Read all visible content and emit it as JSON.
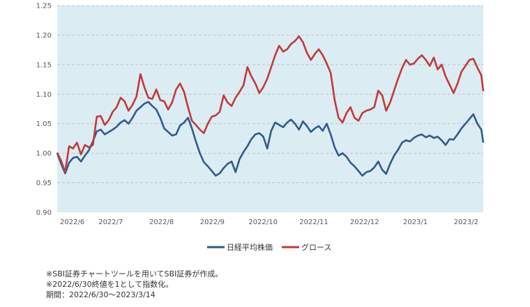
{
  "chart_data": {
    "type": "line",
    "title": "",
    "xlabel": "",
    "ylabel": "",
    "ylim": [
      0.9,
      1.25
    ],
    "yticks": [
      0.9,
      0.95,
      1.0,
      1.05,
      1.1,
      1.15,
      1.2,
      1.25
    ],
    "ytick_labels": [
      "0.90",
      "0.95",
      "1.00",
      "1.05",
      "1.10",
      "1.15",
      "1.20",
      "1.25"
    ],
    "x_categories": [
      "2022/6",
      "2022/7",
      "2022/8",
      "2022/9",
      "2022/10",
      "2022/11",
      "2022/12",
      "2023/1",
      "2023/2"
    ],
    "grid": true,
    "plot_background": "#dcecf3",
    "legend_position": "bottom",
    "series": [
      {
        "name": "日経平均株価",
        "color": "#2e5a8f",
        "values": [
          [
            0,
            1.0
          ],
          [
            0.2,
            0.982
          ],
          [
            0.4,
            0.966
          ],
          [
            0.6,
            0.984
          ],
          [
            0.8,
            0.992
          ],
          [
            1.0,
            0.994
          ],
          [
            1.2,
            0.986
          ],
          [
            1.4,
            0.996
          ],
          [
            1.6,
            1.005
          ],
          [
            1.8,
            1.02
          ],
          [
            2.0,
            1.037
          ],
          [
            2.2,
            1.04
          ],
          [
            2.4,
            1.032
          ],
          [
            2.6,
            1.036
          ],
          [
            2.8,
            1.04
          ],
          [
            3.0,
            1.045
          ],
          [
            3.2,
            1.052
          ],
          [
            3.4,
            1.056
          ],
          [
            3.6,
            1.05
          ],
          [
            3.8,
            1.06
          ],
          [
            4.0,
            1.072
          ],
          [
            4.2,
            1.078
          ],
          [
            4.4,
            1.084
          ],
          [
            4.6,
            1.087
          ],
          [
            4.8,
            1.08
          ],
          [
            5.0,
            1.074
          ],
          [
            5.2,
            1.06
          ],
          [
            5.4,
            1.042
          ],
          [
            5.6,
            1.036
          ],
          [
            5.8,
            1.03
          ],
          [
            6.0,
            1.032
          ],
          [
            6.2,
            1.047
          ],
          [
            6.4,
            1.052
          ],
          [
            6.6,
            1.06
          ],
          [
            6.8,
            1.042
          ],
          [
            7.0,
            1.02
          ],
          [
            7.2,
            1.0
          ],
          [
            7.4,
            0.985
          ],
          [
            7.6,
            0.978
          ],
          [
            7.8,
            0.97
          ],
          [
            8.0,
            0.962
          ],
          [
            8.2,
            0.966
          ],
          [
            8.4,
            0.975
          ],
          [
            8.6,
            0.982
          ],
          [
            8.8,
            0.986
          ],
          [
            9.0,
            0.968
          ],
          [
            9.2,
            0.99
          ],
          [
            9.4,
            1.002
          ],
          [
            9.6,
            1.012
          ],
          [
            9.8,
            1.024
          ],
          [
            10.0,
            1.032
          ],
          [
            10.2,
            1.034
          ],
          [
            10.4,
            1.028
          ],
          [
            10.6,
            1.008
          ],
          [
            10.8,
            1.038
          ],
          [
            11.0,
            1.052
          ],
          [
            11.2,
            1.048
          ],
          [
            11.4,
            1.044
          ],
          [
            11.6,
            1.052
          ],
          [
            11.8,
            1.057
          ],
          [
            12.0,
            1.05
          ],
          [
            12.2,
            1.04
          ],
          [
            12.4,
            1.054
          ],
          [
            12.6,
            1.046
          ],
          [
            12.8,
            1.036
          ],
          [
            13.0,
            1.042
          ],
          [
            13.2,
            1.046
          ],
          [
            13.4,
            1.038
          ],
          [
            13.6,
            1.05
          ],
          [
            13.8,
            1.032
          ],
          [
            14.0,
            1.01
          ],
          [
            14.2,
            0.996
          ],
          [
            14.4,
            1.0
          ],
          [
            14.6,
            0.994
          ],
          [
            14.8,
            0.984
          ],
          [
            15.0,
            0.978
          ],
          [
            15.2,
            0.97
          ],
          [
            15.4,
            0.962
          ],
          [
            15.6,
            0.968
          ],
          [
            15.8,
            0.97
          ],
          [
            16.0,
            0.976
          ],
          [
            16.2,
            0.986
          ],
          [
            16.4,
            0.972
          ],
          [
            16.6,
            0.965
          ],
          [
            16.8,
            0.982
          ],
          [
            17.0,
            0.996
          ],
          [
            17.2,
            1.006
          ],
          [
            17.4,
            1.018
          ],
          [
            17.6,
            1.022
          ],
          [
            17.8,
            1.02
          ],
          [
            18.0,
            1.026
          ],
          [
            18.2,
            1.03
          ],
          [
            18.4,
            1.032
          ],
          [
            18.6,
            1.027
          ],
          [
            18.8,
            1.03
          ],
          [
            19.0,
            1.026
          ],
          [
            19.2,
            1.028
          ],
          [
            19.4,
            1.022
          ],
          [
            19.6,
            1.014
          ],
          [
            19.8,
            1.024
          ],
          [
            20.0,
            1.023
          ],
          [
            20.2,
            1.032
          ],
          [
            20.4,
            1.042
          ],
          [
            20.6,
            1.05
          ],
          [
            20.8,
            1.058
          ],
          [
            21.0,
            1.066
          ],
          [
            21.2,
            1.05
          ],
          [
            21.4,
            1.04
          ],
          [
            21.5,
            1.018
          ]
        ]
      },
      {
        "name": "グロース",
        "color": "#c0393b",
        "values": [
          [
            0,
            1.001
          ],
          [
            0.2,
            0.987
          ],
          [
            0.4,
            0.968
          ],
          [
            0.6,
            1.012
          ],
          [
            0.8,
            1.008
          ],
          [
            1.0,
            1.018
          ],
          [
            1.2,
            0.998
          ],
          [
            1.4,
            1.014
          ],
          [
            1.6,
            1.01
          ],
          [
            1.8,
            1.014
          ],
          [
            2.0,
            1.062
          ],
          [
            2.2,
            1.063
          ],
          [
            2.4,
            1.048
          ],
          [
            2.6,
            1.056
          ],
          [
            2.8,
            1.07
          ],
          [
            3.0,
            1.078
          ],
          [
            3.2,
            1.094
          ],
          [
            3.4,
            1.088
          ],
          [
            3.6,
            1.072
          ],
          [
            3.8,
            1.082
          ],
          [
            4.0,
            1.096
          ],
          [
            4.2,
            1.134
          ],
          [
            4.4,
            1.112
          ],
          [
            4.6,
            1.094
          ],
          [
            4.8,
            1.092
          ],
          [
            5.0,
            1.108
          ],
          [
            5.2,
            1.09
          ],
          [
            5.4,
            1.088
          ],
          [
            5.6,
            1.074
          ],
          [
            5.8,
            1.086
          ],
          [
            6.0,
            1.108
          ],
          [
            6.2,
            1.118
          ],
          [
            6.4,
            1.104
          ],
          [
            6.6,
            1.078
          ],
          [
            6.8,
            1.055
          ],
          [
            7.0,
            1.048
          ],
          [
            7.2,
            1.04
          ],
          [
            7.4,
            1.034
          ],
          [
            7.6,
            1.05
          ],
          [
            7.8,
            1.062
          ],
          [
            8.0,
            1.064
          ],
          [
            8.2,
            1.07
          ],
          [
            8.4,
            1.098
          ],
          [
            8.6,
            1.086
          ],
          [
            8.8,
            1.08
          ],
          [
            9.0,
            1.094
          ],
          [
            9.2,
            1.104
          ],
          [
            9.4,
            1.115
          ],
          [
            9.6,
            1.146
          ],
          [
            9.8,
            1.13
          ],
          [
            10.0,
            1.118
          ],
          [
            10.2,
            1.102
          ],
          [
            10.4,
            1.112
          ],
          [
            10.6,
            1.126
          ],
          [
            10.8,
            1.146
          ],
          [
            11.0,
            1.166
          ],
          [
            11.2,
            1.182
          ],
          [
            11.4,
            1.172
          ],
          [
            11.6,
            1.176
          ],
          [
            11.8,
            1.185
          ],
          [
            12.0,
            1.19
          ],
          [
            12.2,
            1.198
          ],
          [
            12.4,
            1.188
          ],
          [
            12.6,
            1.17
          ],
          [
            12.8,
            1.158
          ],
          [
            13.0,
            1.168
          ],
          [
            13.2,
            1.176
          ],
          [
            13.4,
            1.166
          ],
          [
            13.6,
            1.152
          ],
          [
            13.8,
            1.136
          ],
          [
            14.0,
            1.09
          ],
          [
            14.2,
            1.06
          ],
          [
            14.4,
            1.052
          ],
          [
            14.6,
            1.068
          ],
          [
            14.8,
            1.078
          ],
          [
            15.0,
            1.06
          ],
          [
            15.2,
            1.055
          ],
          [
            15.4,
            1.068
          ],
          [
            15.6,
            1.072
          ],
          [
            15.8,
            1.074
          ],
          [
            16.0,
            1.078
          ],
          [
            16.2,
            1.106
          ],
          [
            16.4,
            1.098
          ],
          [
            16.6,
            1.072
          ],
          [
            16.8,
            1.086
          ],
          [
            17.0,
            1.106
          ],
          [
            17.2,
            1.126
          ],
          [
            17.4,
            1.144
          ],
          [
            17.6,
            1.158
          ],
          [
            17.8,
            1.15
          ],
          [
            18.0,
            1.152
          ],
          [
            18.2,
            1.16
          ],
          [
            18.4,
            1.166
          ],
          [
            18.6,
            1.158
          ],
          [
            18.8,
            1.148
          ],
          [
            19.0,
            1.162
          ],
          [
            19.2,
            1.142
          ],
          [
            19.4,
            1.15
          ],
          [
            19.6,
            1.13
          ],
          [
            19.8,
            1.116
          ],
          [
            20.0,
            1.102
          ],
          [
            20.2,
            1.118
          ],
          [
            20.4,
            1.138
          ],
          [
            20.6,
            1.148
          ],
          [
            20.8,
            1.158
          ],
          [
            21.0,
            1.16
          ],
          [
            21.2,
            1.145
          ],
          [
            21.4,
            1.132
          ],
          [
            21.5,
            1.105
          ]
        ]
      }
    ]
  },
  "notes": [
    "※SBI証券チャートツールを用いてSBI証券が作成。",
    "※2022/6/30終値を1として指数化。",
    "期間：2022/6/30～2023/3/14"
  ]
}
